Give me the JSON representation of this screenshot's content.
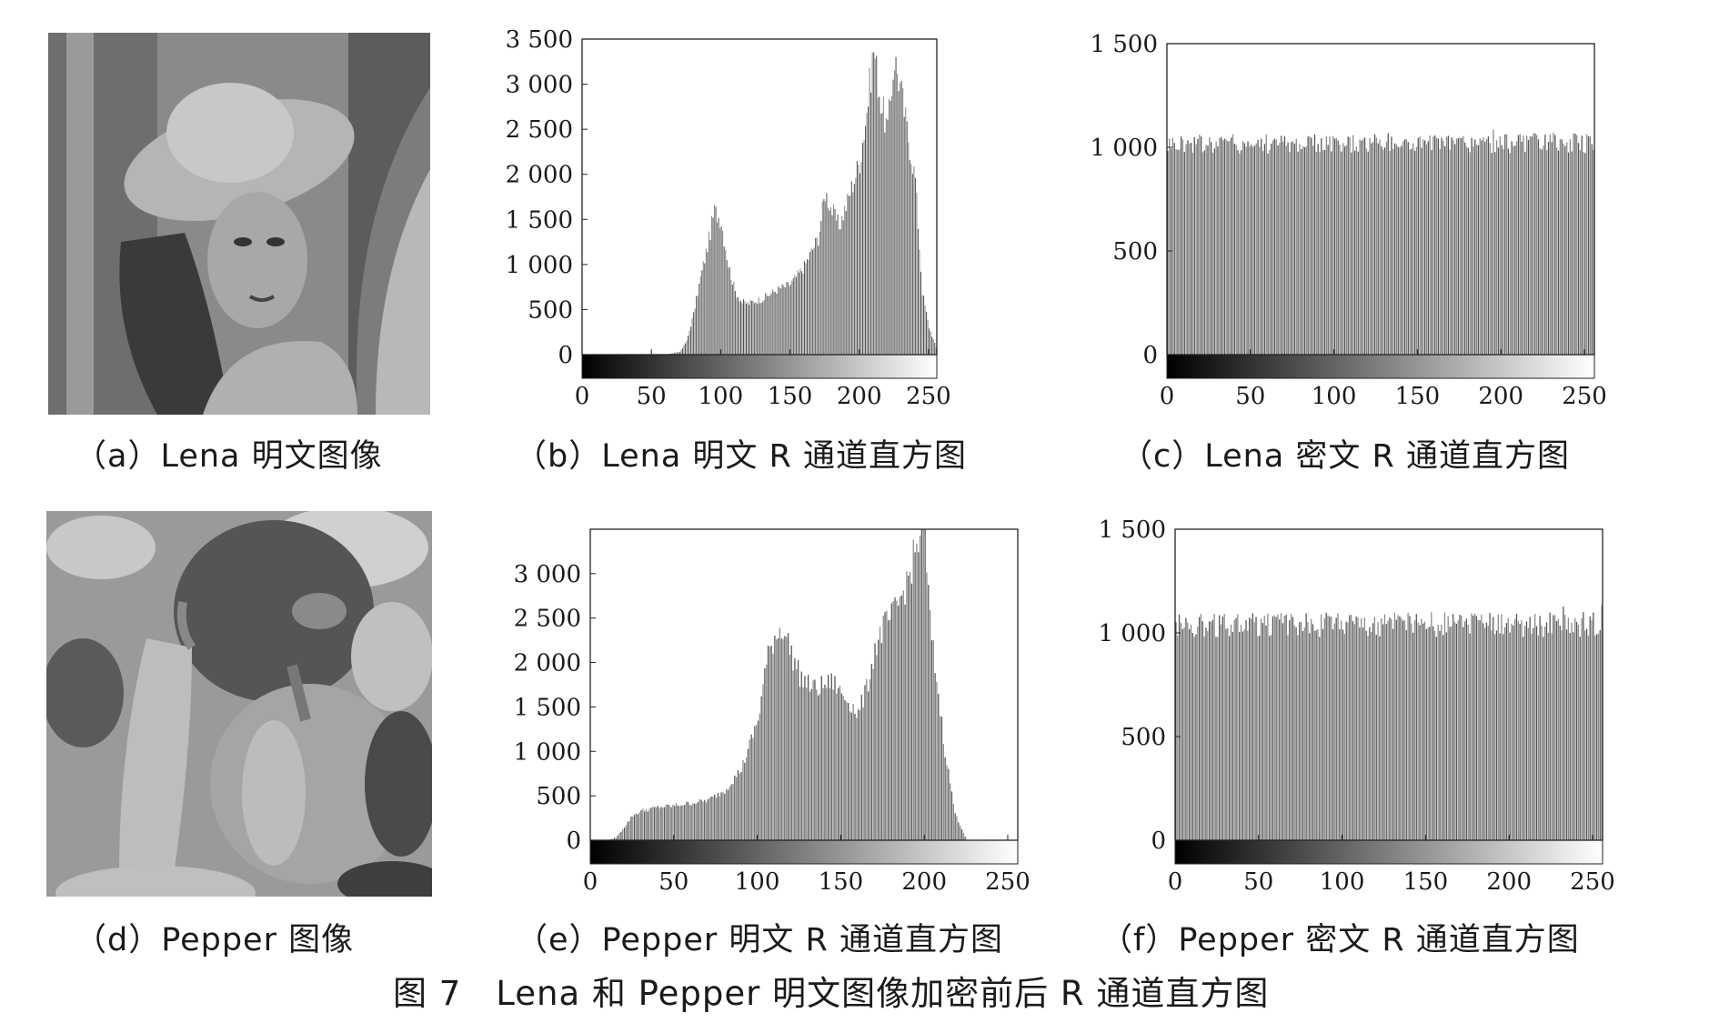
{
  "figure_caption": "图 7　Lena 和 Pepper 明文图像加密前后 R 通道直方图",
  "panels": [
    {
      "caption": "（a）Lena 明文图像",
      "image": "lena-photo"
    },
    {
      "caption": "（b）Lena 明文 R 通道直方图"
    },
    {
      "caption": "（c）Lena 密文 R 通道直方图"
    },
    {
      "caption": "（d）Pepper 图像",
      "image": "pepper-photo"
    },
    {
      "caption": "（e）Pepper 明文 R 通道直方图"
    },
    {
      "caption": "（f）Pepper 密文 R 通道直方图"
    }
  ],
  "chart_data": [
    {
      "id": "b",
      "type": "bar",
      "title": "（b）Lena 明文 R 通道直方图",
      "xlabel": "",
      "ylabel": "",
      "xlim": [
        0,
        256
      ],
      "ylim": [
        0,
        3500
      ],
      "xticks": [
        0,
        50,
        100,
        150,
        200,
        250
      ],
      "xtick_labels": [
        "0",
        "50",
        "100",
        "150",
        "200",
        "250"
      ],
      "yticks": [
        0,
        500,
        1000,
        1500,
        2000,
        2500,
        3000,
        3500
      ],
      "ytick_labels": [
        "0",
        "500",
        "1 000",
        "1 500",
        "2 000",
        "2 500",
        "3 000",
        "3 500"
      ],
      "grid": false,
      "colorbar": "grayscale 0-255 below axis",
      "series": [
        {
          "x": [
            0,
            60,
            70,
            75,
            80,
            85,
            90,
            95,
            100,
            105,
            110,
            115,
            120,
            125,
            130,
            140,
            150,
            160,
            170,
            175,
            180,
            185,
            190,
            195,
            200,
            205,
            210,
            215,
            220,
            225,
            230,
            235,
            240,
            245,
            250,
            255
          ],
          "values": [
            0,
            0,
            30,
            150,
            450,
            850,
            1200,
            1600,
            1480,
            1000,
            700,
            580,
            570,
            600,
            620,
            720,
            780,
            980,
            1300,
            1800,
            1600,
            1420,
            1650,
            1900,
            2150,
            2700,
            3400,
            2800,
            2500,
            3300,
            2900,
            2400,
            1950,
            700,
            300,
            80
          ]
        }
      ]
    },
    {
      "id": "c",
      "type": "bar",
      "title": "（c）Lena 密文 R 通道直方图",
      "xlabel": "",
      "ylabel": "",
      "xlim": [
        0,
        256
      ],
      "ylim": [
        0,
        1500
      ],
      "xticks": [
        0,
        50,
        100,
        150,
        200,
        250
      ],
      "xtick_labels": [
        "0",
        "50",
        "100",
        "150",
        "200",
        "250"
      ],
      "yticks": [
        0,
        500,
        1000,
        1500
      ],
      "ytick_labels": [
        "0",
        "500",
        "1 000",
        "1 500"
      ],
      "grid": false,
      "colorbar": "grayscale 0-255 below axis",
      "series": [
        {
          "x": [
            0,
            255
          ],
          "values": [
            1030,
            1030
          ],
          "fluctuation": [
            970,
            1100
          ]
        }
      ]
    },
    {
      "id": "e",
      "type": "bar",
      "title": "（e）Pepper 明文 R 通道直方图",
      "xlabel": "",
      "ylabel": "",
      "xlim": [
        0,
        256
      ],
      "ylim": [
        0,
        3500
      ],
      "xticks": [
        0,
        50,
        100,
        150,
        200,
        250
      ],
      "xtick_labels": [
        "0",
        "50",
        "100",
        "150",
        "200",
        "250"
      ],
      "yticks": [
        0,
        500,
        1000,
        1500,
        2000,
        2500,
        3000
      ],
      "ytick_labels": [
        "0",
        "500",
        "1 000",
        "1 500",
        "2 000",
        "2 500",
        "3 000"
      ],
      "grid": false,
      "colorbar": "grayscale 0-255 below axis",
      "series": [
        {
          "x": [
            0,
            10,
            15,
            20,
            25,
            30,
            40,
            50,
            60,
            70,
            80,
            90,
            100,
            105,
            110,
            115,
            120,
            125,
            130,
            135,
            140,
            145,
            150,
            155,
            160,
            165,
            170,
            175,
            180,
            185,
            190,
            195,
            198,
            200,
            203,
            207,
            212,
            218,
            225,
            255
          ],
          "values": [
            0,
            0,
            30,
            150,
            280,
            330,
            370,
            390,
            420,
            450,
            560,
            800,
            1350,
            2000,
            2300,
            2400,
            2100,
            1850,
            1750,
            1700,
            1750,
            1780,
            1650,
            1550,
            1420,
            1700,
            2150,
            2400,
            2500,
            2700,
            2950,
            3300,
            3500,
            3400,
            2450,
            1800,
            1000,
            300,
            0,
            0
          ]
        }
      ]
    },
    {
      "id": "f",
      "type": "bar",
      "title": "（f）Pepper 密文 R 通道直方图",
      "xlabel": "",
      "ylabel": "",
      "xlim": [
        0,
        256
      ],
      "ylim": [
        0,
        1500
      ],
      "xticks": [
        0,
        50,
        100,
        150,
        200,
        250
      ],
      "xtick_labels": [
        "0",
        "50",
        "100",
        "150",
        "200",
        "250"
      ],
      "yticks": [
        0,
        500,
        1000,
        1500
      ],
      "ytick_labels": [
        "0",
        "500",
        "1 000",
        "1 500"
      ],
      "grid": false,
      "colorbar": "grayscale 0-255 below axis",
      "series": [
        {
          "x": [
            0,
            255
          ],
          "values": [
            1030,
            1030
          ],
          "fluctuation": [
            980,
            1140
          ]
        }
      ]
    }
  ]
}
